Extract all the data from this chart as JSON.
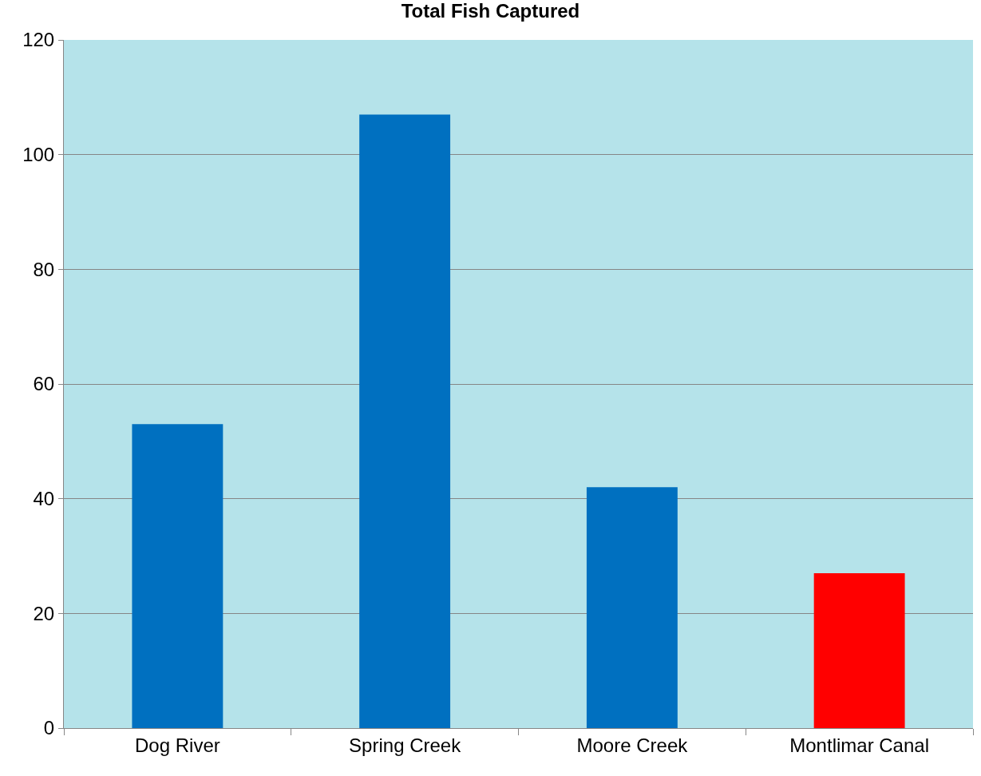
{
  "chart_data": {
    "type": "bar",
    "title": "Total Fish Captured",
    "categories": [
      "Dog River",
      "Spring Creek",
      "Moore Creek",
      "Montlimar Canal"
    ],
    "values": [
      53,
      107,
      42,
      27
    ],
    "colors": [
      "#0070c0",
      "#0070c0",
      "#0070c0",
      "#ff0000"
    ],
    "ylim": [
      0,
      120
    ],
    "yticks": [
      0,
      20,
      40,
      60,
      80,
      100,
      120
    ],
    "grid": "y"
  }
}
